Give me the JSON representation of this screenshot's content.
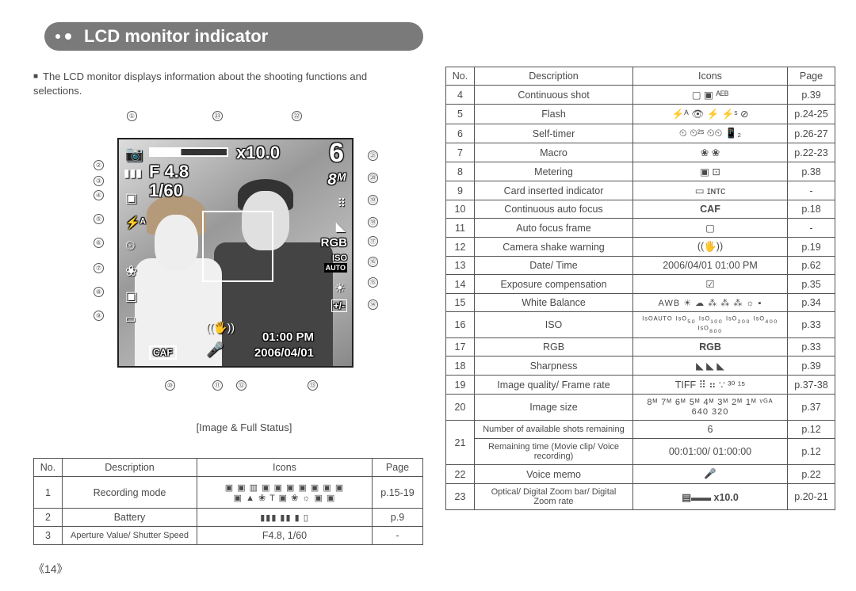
{
  "header": {
    "title": "LCD monitor indicator"
  },
  "intro": "The LCD monitor displays information about the shooting functions and selections.",
  "lcd": {
    "zoom_rate": "x10.0",
    "f_value": "F 4.8",
    "shutter": "1/60",
    "shots_remaining": "6",
    "image_size_badge": "8ᴹ",
    "iso_badge": "ISO",
    "iso_mode": "AUTO",
    "rgb": "RGB",
    "time": "01:00 PM",
    "date": "2006/04/01",
    "caf": "CAF",
    "exp_comp": "+/-",
    "flash_mode": "⚡ᴬ",
    "caption": "[Image & Full Status]"
  },
  "callouts": {
    "top": [
      "①",
      "㉓",
      "㉒"
    ],
    "left": [
      "②",
      "③",
      "④",
      "⑤",
      "⑥",
      "⑦",
      "⑧",
      "⑨"
    ],
    "right": [
      "㉑",
      "⑳",
      "⑲",
      "⑱",
      "⑰",
      "⑯",
      "⑮",
      "⑭"
    ],
    "bottom": [
      "⑩",
      "⑪",
      "⑫",
      "⑬"
    ]
  },
  "left_table": {
    "headers": [
      "No.",
      "Description",
      "Icons",
      "Page"
    ],
    "rows": [
      {
        "no": "1",
        "desc": "Recording mode",
        "icons": "▣ ▣ ▥ ▣ ▣ ▣ ▣ ▣ ▣ ▣\n▣ ▲ ❀ T ▣ ❀ ☼ ▣ ▣",
        "page": "p.15-19"
      },
      {
        "no": "2",
        "desc": "Battery",
        "icons": "▮▮▮  ▮▮  ▮  ▯",
        "page": "p.9"
      },
      {
        "no": "3",
        "desc": "Aperture Value/ Shutter Speed",
        "icons": "F4.8, 1/60",
        "page": "-"
      }
    ]
  },
  "right_table": {
    "headers": [
      "No.",
      "Description",
      "Icons",
      "Page"
    ],
    "rows": [
      {
        "no": "4",
        "desc": "Continuous shot",
        "icons": "▢  ▣  ᴬᴱᴮ",
        "page": "p.39"
      },
      {
        "no": "5",
        "desc": "Flash",
        "icons": "⚡ᴬ  👁  ⚡  ⚡ˢ  ⊘",
        "page": "p.24-25"
      },
      {
        "no": "6",
        "desc": "Self-timer",
        "icons": "⏲  ⏲²ˢ  ⏲⏲  📱₂",
        "page": "p.26-27"
      },
      {
        "no": "7",
        "desc": "Macro",
        "icons": "❀  ❀",
        "page": "p.22-23"
      },
      {
        "no": "8",
        "desc": "Metering",
        "icons": "▣  ⊡",
        "page": "p.38"
      },
      {
        "no": "9",
        "desc": "Card inserted indicator",
        "icons": "▭  ɪɴᴛᴄ",
        "page": "-"
      },
      {
        "no": "10",
        "desc": "Continuous auto focus",
        "icons": "CAF",
        "page": "p.18"
      },
      {
        "no": "11",
        "desc": "Auto focus frame",
        "icons": "▢",
        "page": "-"
      },
      {
        "no": "12",
        "desc": "Camera shake warning",
        "icons": "((🖐))",
        "page": "p.19"
      },
      {
        "no": "13",
        "desc": "Date/ Time",
        "icons": "2006/04/01   01:00 PM",
        "page": "p.62"
      },
      {
        "no": "14",
        "desc": "Exposure compensation",
        "icons": "☑",
        "page": "p.35"
      },
      {
        "no": "15",
        "desc": "White Balance",
        "icons": "AWB ☀ ☁ ⁂ ⁂ ⁂ ☼ ▪",
        "page": "p.34"
      },
      {
        "no": "16",
        "desc": "ISO",
        "icons": "ᴵˢᴼᴬᵁᵀᴼ ᴵˢᴼ₅₀ ᴵˢᴼ₁₀₀ ᴵˢᴼ₂₀₀ ᴵˢᴼ₄₀₀ ᴵˢᴼ₈₀₀",
        "page": "p.33"
      },
      {
        "no": "17",
        "desc": "RGB",
        "icons": "RGB",
        "page": "p.33"
      },
      {
        "no": "18",
        "desc": "Sharpness",
        "icons": "◣ ◣ ◣",
        "page": "p.39"
      },
      {
        "no": "19",
        "desc": "Image quality/ Frame rate",
        "icons": "TIFF ⠿ ⠶ ∵ ³⁰ ¹⁵",
        "page": "p.37-38"
      },
      {
        "no": "20",
        "desc": "Image size",
        "icons": "8ᴹ 7ᴹ 6ᴹ 5ᴹ 4ᴹ 3ᴹ 2ᴹ 1ᴹ ᵛᴳᴬ 640 320",
        "page": "p.37"
      },
      {
        "no": "21",
        "sub1": {
          "desc": "Number of available shots remaining",
          "icons": "6",
          "page": "p.12"
        },
        "sub2": {
          "desc": "Remaining time (Movie clip/ Voice recording)",
          "icons": "00:01:00/ 01:00:00",
          "page": "p.12"
        }
      },
      {
        "no": "22",
        "desc": "Voice memo",
        "icons": "🎤",
        "page": "p.22"
      },
      {
        "no": "23",
        "desc": "Optical/ Digital Zoom bar/ Digital Zoom rate",
        "icons": "▤▬▬  x10.0",
        "page": "p.20-21"
      }
    ]
  },
  "page_number": "14",
  "colors": {
    "header_bg": "#7a7a7a",
    "text": "#4a4a4a",
    "border": "#555555",
    "lcd_bg": "#555555"
  }
}
